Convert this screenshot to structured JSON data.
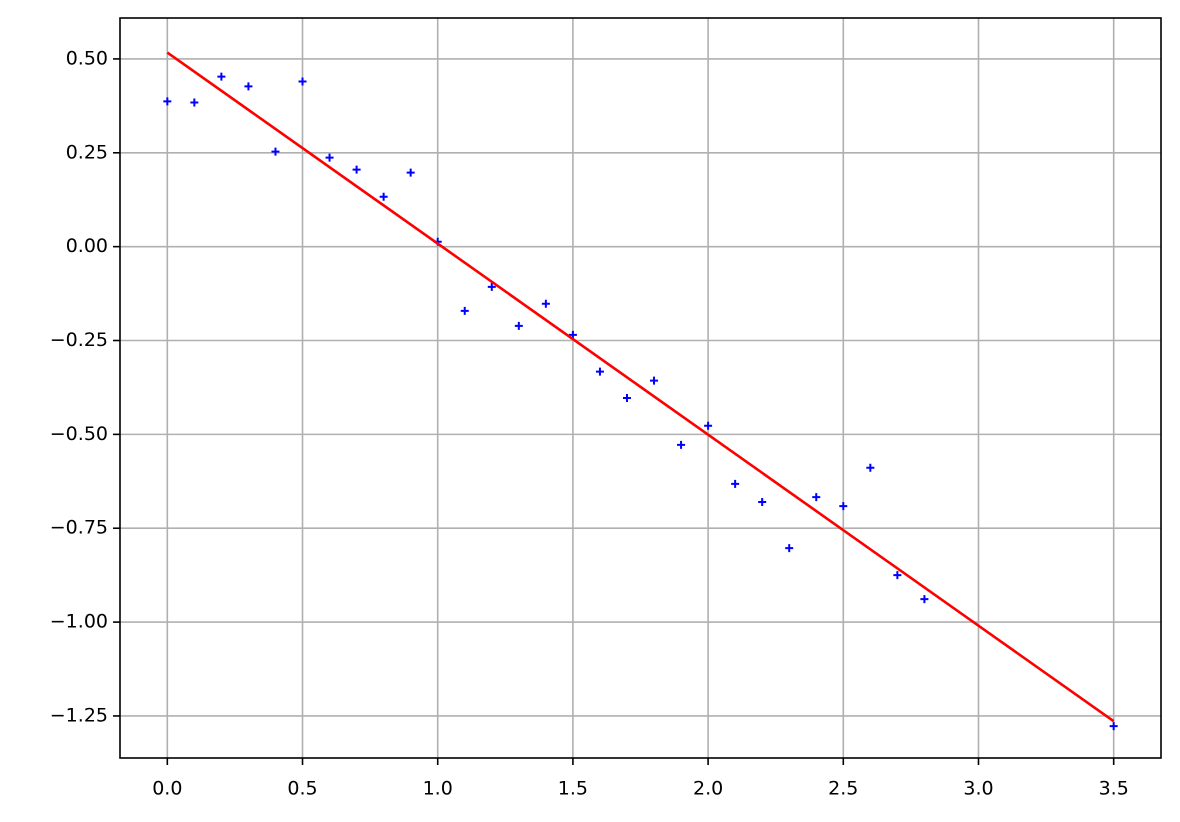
{
  "chart_data": {
    "type": "scatter",
    "series": [
      {
        "type": "scatter",
        "color": "#0000ff",
        "x": [
          0,
          0.1,
          0.2,
          0.3,
          0.4,
          0.5,
          0.6,
          0.7,
          0.8,
          0.9,
          1.0,
          1.1,
          1.2,
          1.3,
          1.4,
          1.5,
          1.6,
          1.7,
          1.8,
          1.9,
          2.0,
          2.1,
          2.2,
          2.3,
          2.4,
          2.5,
          2.6,
          2.7,
          2.8,
          3.5
        ],
        "values": [
          0.387,
          0.384,
          0.453,
          0.427,
          0.253,
          0.44,
          0.237,
          0.205,
          0.133,
          0.197,
          0.013,
          -0.171,
          -0.107,
          -0.211,
          -0.152,
          -0.235,
          -0.333,
          -0.403,
          -0.357,
          -0.528,
          -0.477,
          -0.632,
          -0.68,
          -0.803,
          -0.667,
          -0.691,
          -0.589,
          -0.875,
          -0.939,
          -1.277
        ]
      },
      {
        "type": "line",
        "color": "#ff0000",
        "x": [
          0,
          3.5
        ],
        "values": [
          0.517,
          -1.264
        ]
      }
    ],
    "xlim": [
      -0.175,
      3.675
    ],
    "ylim": [
      -1.362,
      0.609
    ],
    "xticks": [
      {
        "value": 0,
        "label": "0.0"
      },
      0.5,
      {
        "value": 1,
        "label": "1.0"
      },
      1.5,
      {
        "value": 2,
        "label": "2.0"
      },
      2.5,
      {
        "value": 3,
        "label": "3.0"
      },
      3.5
    ],
    "yticks": [
      {
        "value": 0.5,
        "label": "0.50"
      },
      {
        "value": 0.25,
        "label": "0.25"
      },
      {
        "value": 0,
        "label": "0.00"
      },
      {
        "value": -0.25,
        "label": "−0.25"
      },
      {
        "value": -0.5,
        "label": "−0.50"
      },
      {
        "value": -0.75,
        "label": "−0.75"
      },
      {
        "value": -1,
        "label": "−1.00"
      },
      {
        "value": -1.25,
        "label": "−1.25"
      }
    ],
    "grid": true
  }
}
